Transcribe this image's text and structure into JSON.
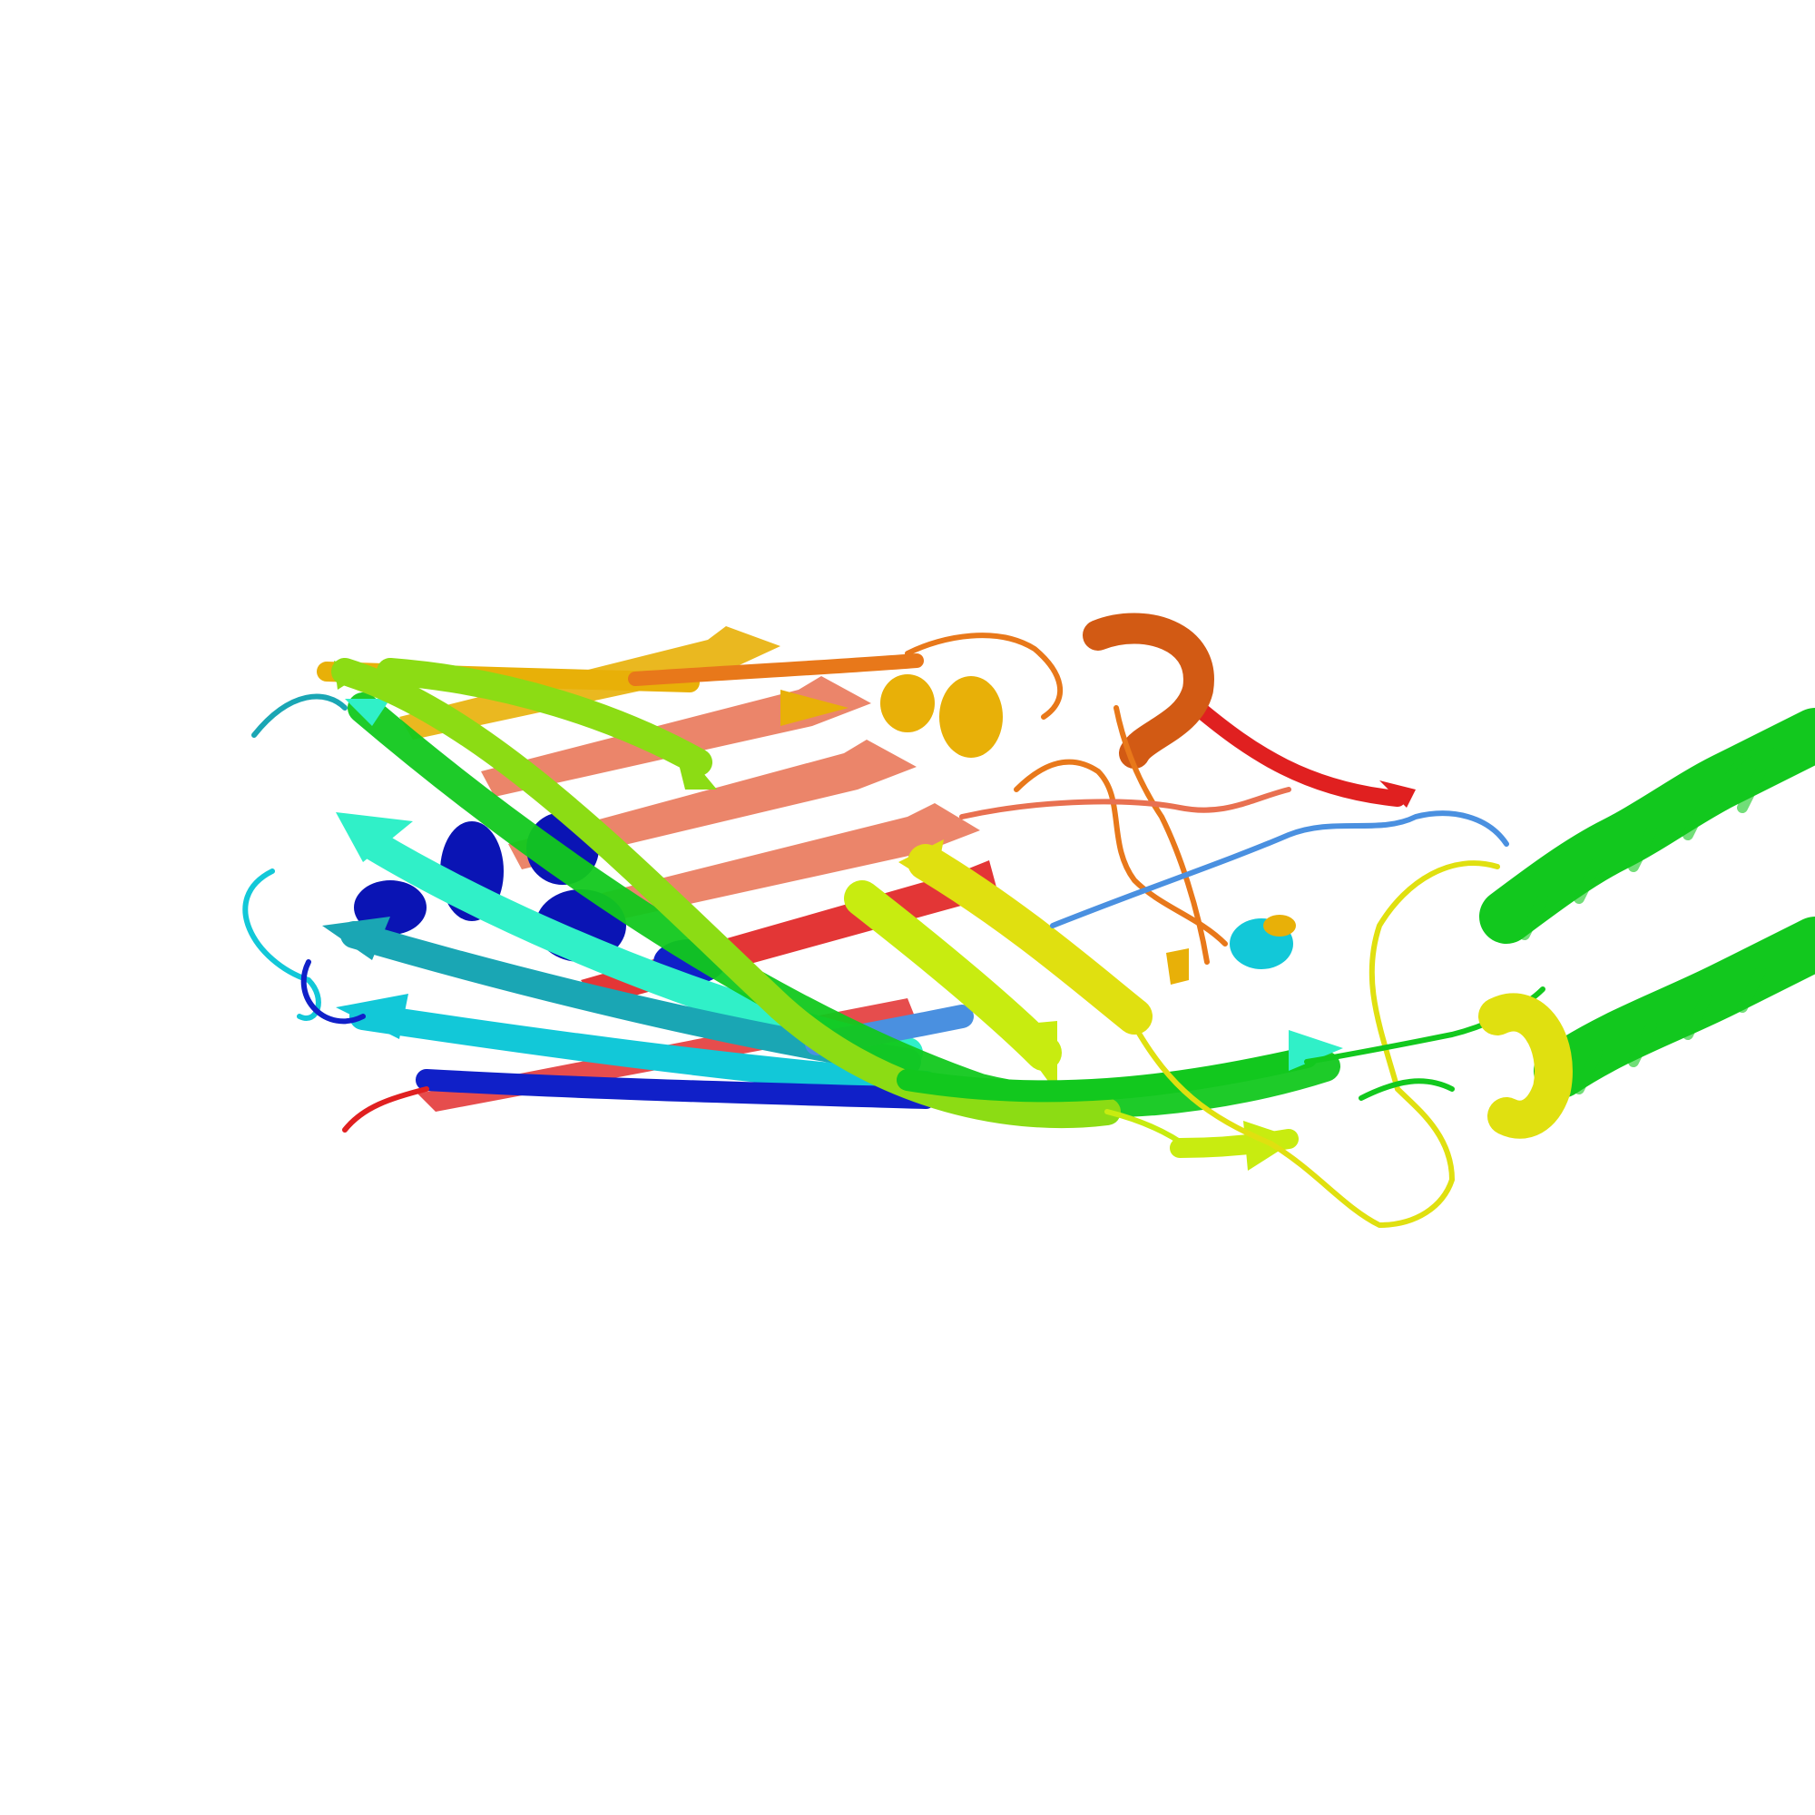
{
  "image": {
    "kind": "protein-cartoon-rendering",
    "background": "#ffffff"
  },
  "colors": {
    "blue": "#1020c8",
    "deep_blue": "#0a14b4",
    "sky_blue": "#4a90e0",
    "cyan": "#12c8d8",
    "aqua": "#30f0c8",
    "teal": "#1aa6b4",
    "green": "#12c81e",
    "lime": "#8cdc14",
    "chartreuse": "#c8ec10",
    "yellow": "#e0e010",
    "gold": "#e8b008",
    "orange": "#e8781a",
    "dark_orange": "#d25a14",
    "salmon": "#e87050",
    "red": "#e02020"
  }
}
